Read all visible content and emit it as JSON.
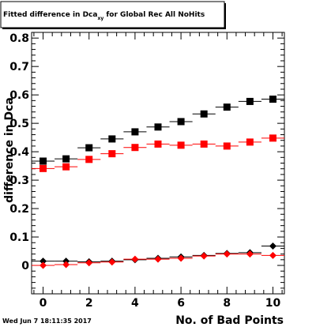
{
  "chart_data": {
    "type": "scatter",
    "title_main": "Fitted difference in Dca",
    "title_sub": "xy",
    "title_rest": " for Global Rec All NoHits",
    "xlabel": "No. of Bad Points",
    "ylabel": "difference in Dca",
    "xlim": [
      -0.5,
      10.5
    ],
    "ylim": [
      -0.1,
      0.82
    ],
    "x_ticks": [
      "0",
      "2",
      "4",
      "6",
      "8",
      "10"
    ],
    "y_ticks": [
      "0",
      "0.1",
      "0.2",
      "0.3",
      "0.4",
      "0.5",
      "0.6",
      "0.7",
      "0.8"
    ],
    "x": [
      0,
      1,
      2,
      3,
      4,
      5,
      6,
      7,
      8,
      9,
      10
    ],
    "series": [
      {
        "marker": "square",
        "color": "#000000",
        "values": [
          0.367,
          0.375,
          0.414,
          0.445,
          0.47,
          0.487,
          0.506,
          0.533,
          0.557,
          0.577,
          0.585
        ]
      },
      {
        "marker": "square",
        "color": "#ff0000",
        "values": [
          0.341,
          0.347,
          0.373,
          0.393,
          0.415,
          0.427,
          0.423,
          0.427,
          0.42,
          0.434,
          0.448
        ]
      },
      {
        "marker": "diamond",
        "color": "#000000",
        "values": [
          0.015,
          0.015,
          0.013,
          0.015,
          0.02,
          0.025,
          0.03,
          0.035,
          0.042,
          0.045,
          0.068
        ]
      },
      {
        "marker": "diamond",
        "color": "#ff0000",
        "values": [
          0.0,
          0.003,
          0.009,
          0.012,
          0.022,
          0.022,
          0.025,
          0.033,
          0.04,
          0.04,
          0.035
        ]
      }
    ]
  },
  "footer": {
    "timestamp": "Wed Jun  7 18:11:35 2017"
  }
}
